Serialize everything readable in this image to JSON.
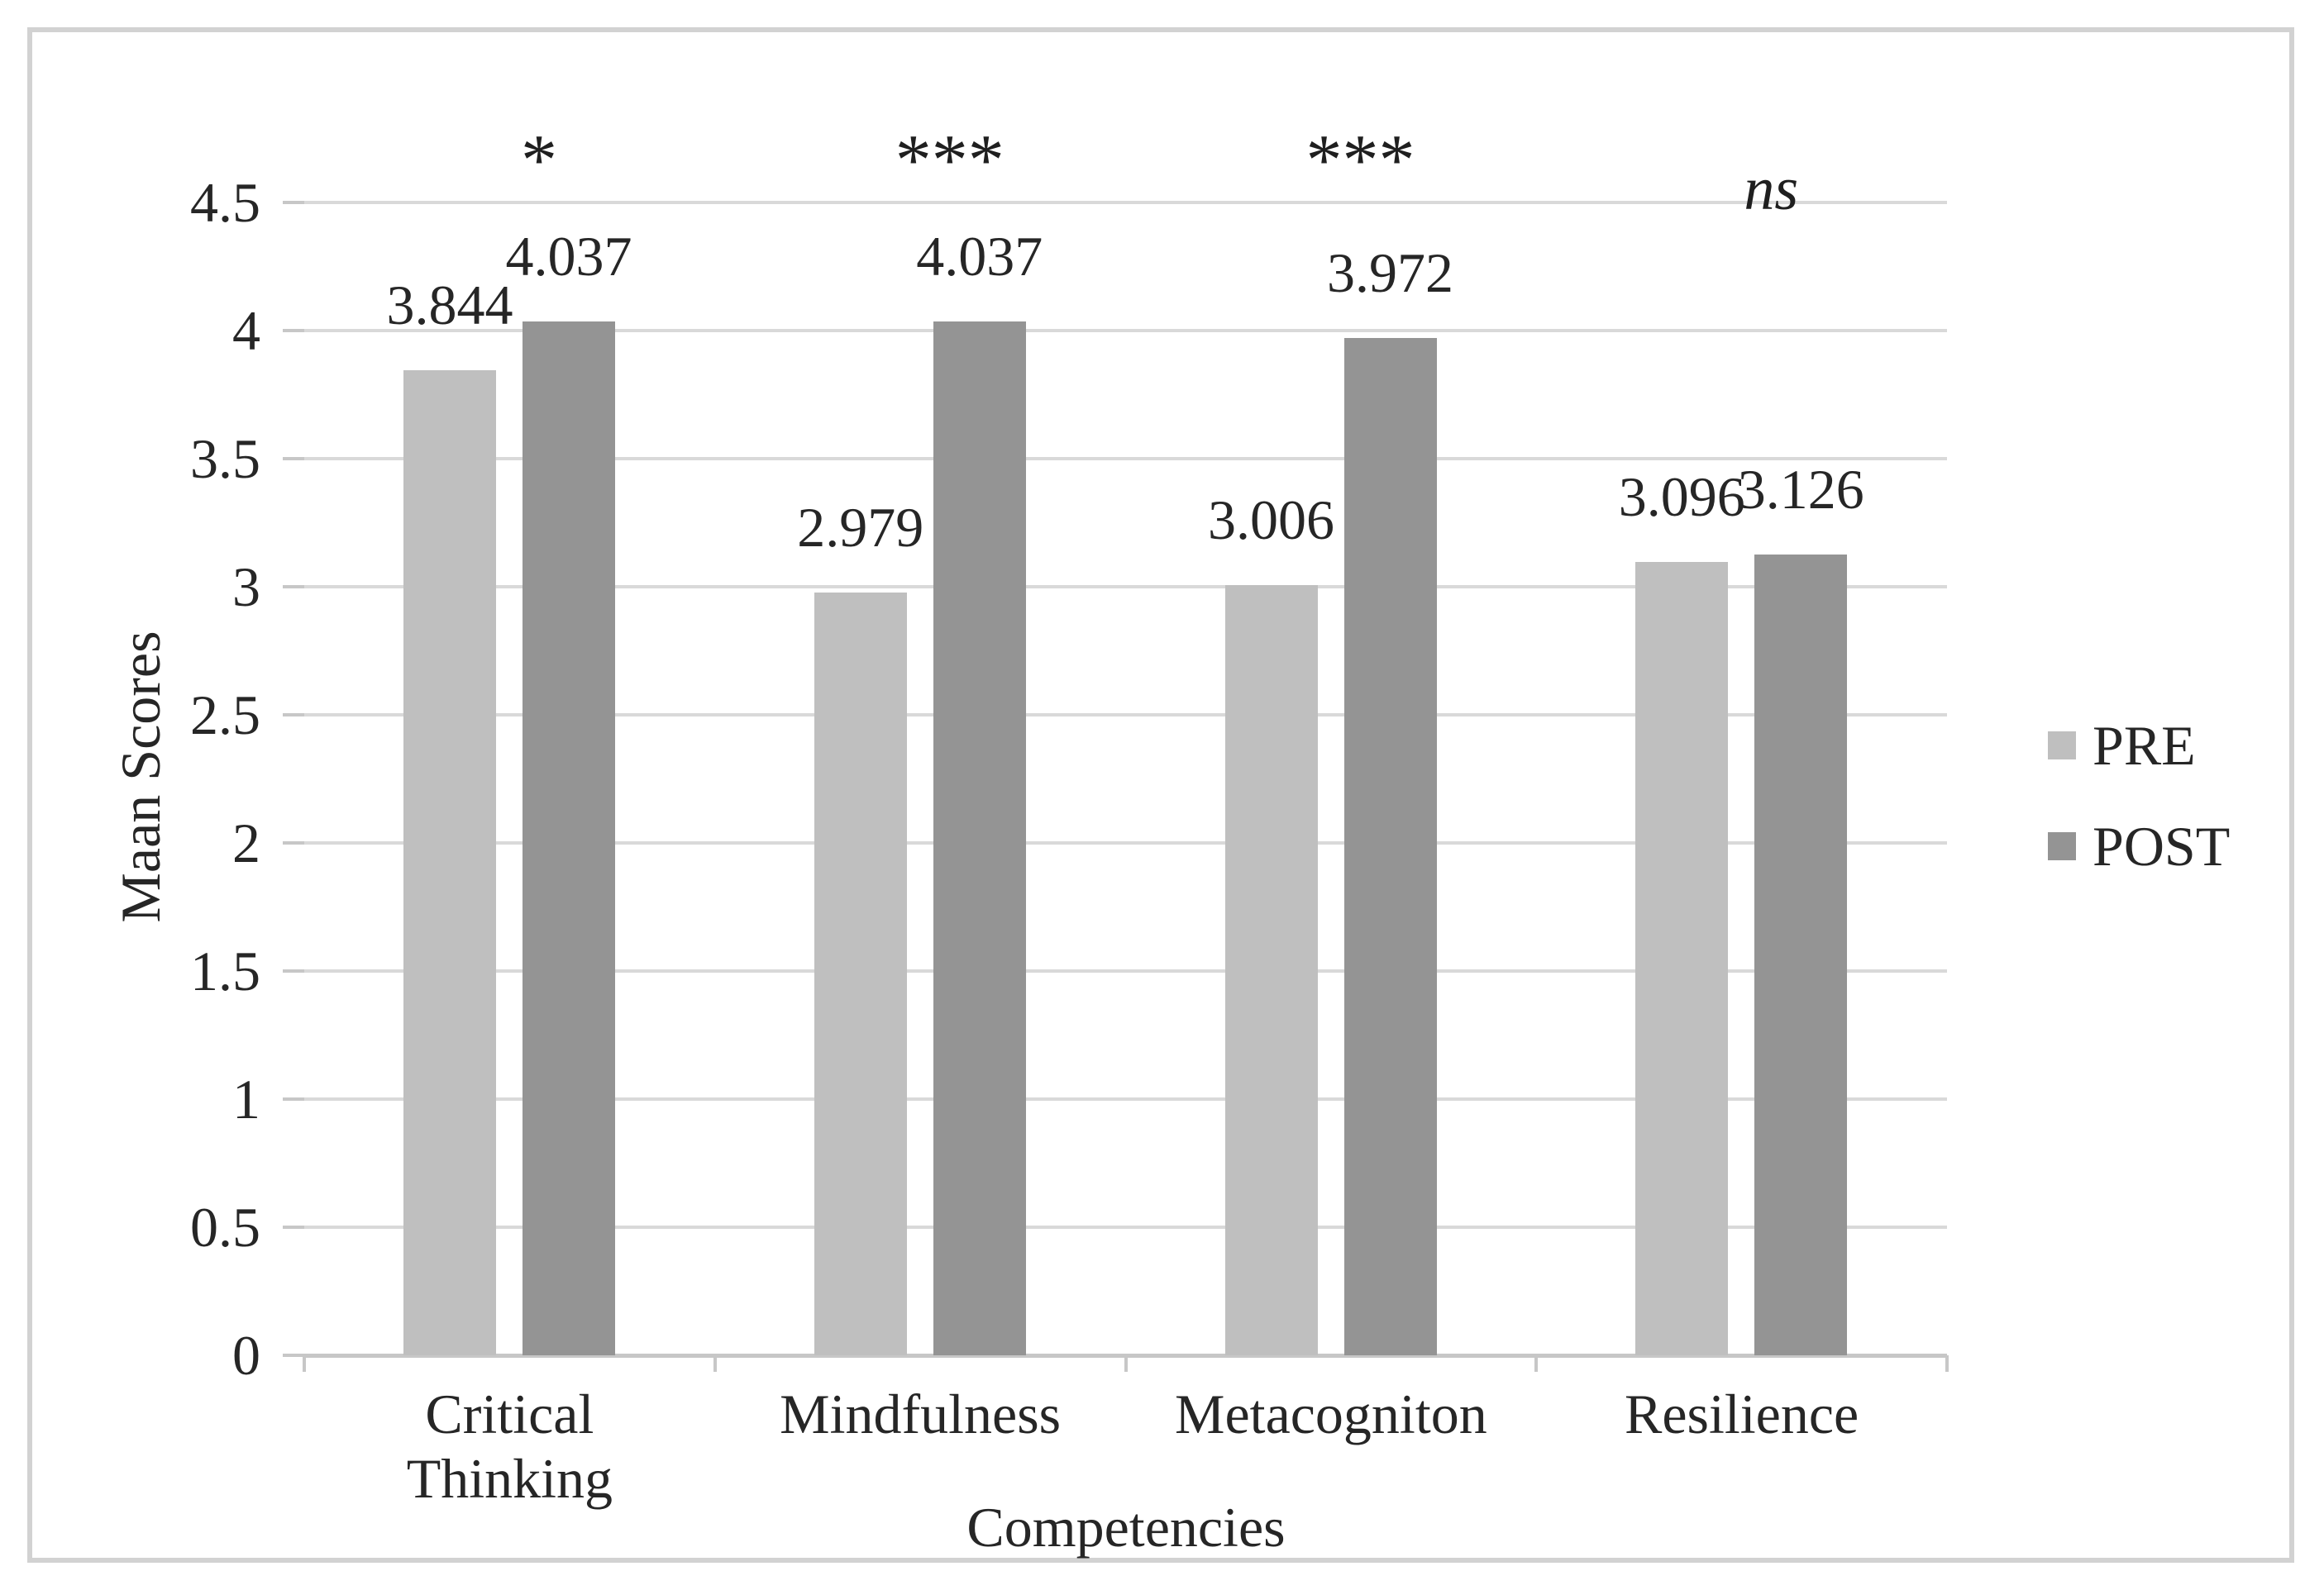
{
  "chart_data": {
    "type": "bar",
    "title": "",
    "xlabel": "Competencies",
    "ylabel": "Maan Scores",
    "categories": [
      "Critical Thinking",
      "Mindfulness",
      "Metacogniton",
      "Resilience"
    ],
    "series": [
      {
        "name": "PRE",
        "color": "#bfbfbf",
        "values": [
          3.844,
          2.979,
          3.006,
          3.096
        ],
        "value_labels": [
          "3.844",
          "2.979",
          "3.006",
          "3.096"
        ]
      },
      {
        "name": "POST",
        "color": "#949494",
        "values": [
          4.037,
          4.037,
          3.972,
          3.126
        ],
        "value_labels": [
          "4.037",
          "4.037",
          "3.972",
          "3.126"
        ]
      }
    ],
    "significance_markers": [
      "*",
      "***",
      "***",
      "ns"
    ],
    "ylim": [
      0,
      4.5
    ],
    "ytick_step": 0.5,
    "ytick_labels": [
      "0",
      "0.5",
      "1",
      "1.5",
      "2",
      "2.5",
      "3",
      "3.5",
      "4",
      "4.5"
    ],
    "grid": true,
    "legend_position": "right",
    "legend_entries": [
      "PRE",
      "POST"
    ],
    "colors": {
      "pre_bar": "#bfbfbf",
      "post_bar": "#949494",
      "gridline": "#d9d9d9",
      "axis_line": "#c7c7c7",
      "text": "#262626",
      "figure_border": "#d2d2d2"
    }
  }
}
